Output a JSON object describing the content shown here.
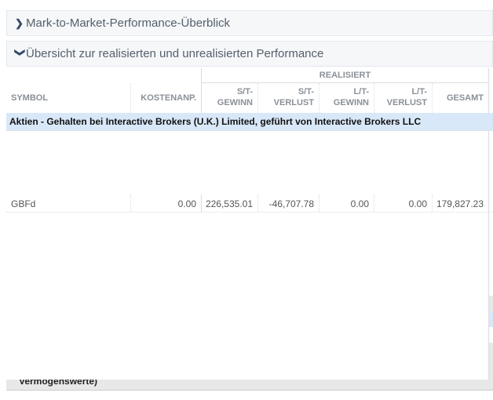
{
  "sections": [
    {
      "label": "Mark-to-Market-Performance-Überblick",
      "icon": "chevron-right-icon",
      "expanded": false
    },
    {
      "label": "Übersicht zur realisierten und unrealisierten Performance",
      "icon": "chevron-down-icon",
      "expanded": true
    }
  ],
  "table": {
    "group_header": "REALISIERT",
    "columns": [
      "SYMBOL",
      "KOSTENANP.",
      "S/T-\nGEWINN",
      "S/T-\nVERLUST",
      "L/T-\nGEWINN",
      "L/T-\nVERLUST",
      "GESAMT"
    ],
    "category_row": "Aktien - Gehalten bei Interactive Brokers (U.K.) Limited, geführt von Interactive Brokers LLC",
    "rows": [
      {
        "symbol": "GBFd",
        "kostenanp": "0.00",
        "st_gewinn": "226,535.01",
        "st_verlust": "-46,707.78",
        "lt_gewinn": "0.00",
        "lt_verlust": "0.00",
        "gesamt": "179,827.23"
      }
    ],
    "footer_partial": "Vermögenswerte)"
  },
  "colors": {
    "category_bg": "#d9e8f8",
    "header_text": "#8a9097",
    "section_bg": "#f5f7f9"
  }
}
